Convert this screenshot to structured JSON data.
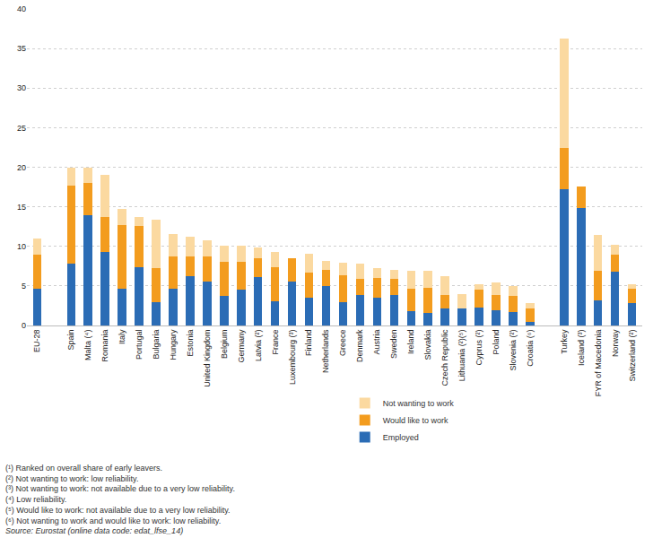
{
  "chart_data": {
    "type": "bar",
    "stacked": true,
    "grid": true,
    "legend": "bottom",
    "categories": [
      "EU-28",
      null,
      "Spain",
      "Malta (⁴)",
      "Romania",
      "Italy",
      "Portugal",
      "Bulgaria",
      "Hungary",
      "Estonia",
      "United Kingdom",
      "Belgium",
      "Germany",
      "Latvia (²)",
      "France",
      "Luxembourg (³)",
      "Finland",
      "Netherlands",
      "Greece",
      "Denmark",
      "Austria",
      "Sweden",
      "Ireland",
      "Slovakia",
      "Czech Republic",
      "Lithuania (²)(⁵)",
      "Cyprus (²)",
      "Poland",
      "Slovenia (²)",
      "Croatia (⁶)",
      null,
      "Turkey",
      "Iceland (³)",
      "FYR of Macedonia",
      "Norway",
      "Switzerland (²)"
    ],
    "series": [
      {
        "name": "Employed",
        "color": "#2b6cb5",
        "values": [
          4.6,
          null,
          7.8,
          13.9,
          9.3,
          4.7,
          7.4,
          2.9,
          4.7,
          6.2,
          5.5,
          3.7,
          4.5,
          6.1,
          3.1,
          5.6,
          3.5,
          5.0,
          3.0,
          3.8,
          3.5,
          3.9,
          1.8,
          1.6,
          2.2,
          2.1,
          2.3,
          1.9,
          1.7,
          0.5,
          null,
          17.2,
          14.9,
          3.2,
          6.8,
          2.8
        ]
      },
      {
        "name": "Would like to work",
        "color": "#f39c1e",
        "values": [
          4.3,
          null,
          9.9,
          4.1,
          4.4,
          8.0,
          5.2,
          4.4,
          4.0,
          2.5,
          3.2,
          4.3,
          3.5,
          2.4,
          4.3,
          2.9,
          3.2,
          2.0,
          3.4,
          2.1,
          2.5,
          2.0,
          2.8,
          3.2,
          1.7,
          null,
          2.2,
          1.9,
          2.0,
          1.6,
          null,
          5.2,
          2.7,
          3.7,
          2.1,
          1.9
        ]
      },
      {
        "name": "Not wanting to work",
        "color": "#fbd9a0",
        "values": [
          2.1,
          null,
          2.2,
          1.9,
          5.3,
          2.0,
          1.1,
          6.1,
          2.9,
          2.5,
          2.1,
          2.1,
          2.1,
          1.4,
          1.9,
          null,
          2.4,
          1.2,
          1.5,
          1.9,
          1.3,
          1.1,
          2.3,
          2.1,
          2.3,
          1.9,
          0.7,
          1.6,
          1.3,
          0.7,
          null,
          13.9,
          null,
          4.6,
          1.3,
          0.5
        ]
      }
    ],
    "ylim": [
      0,
      40
    ],
    "yticks": [
      0,
      5,
      10,
      15,
      20,
      25,
      30,
      35,
      40
    ],
    "annotations": [
      "(¹) Ranked on overall share of early leavers.",
      "(²) Not wanting to work: low reliability.",
      "(³) Not wanting to work: not available due to a very low reliability.",
      "(⁴) Low reliability.",
      "(⁵) Would like to work: not available due to a very low reliability.",
      "(⁶) Not wanting to work and would like to work: low reliability."
    ],
    "source": "Source: Eurostat (online data code: edat_lfse_14)"
  }
}
